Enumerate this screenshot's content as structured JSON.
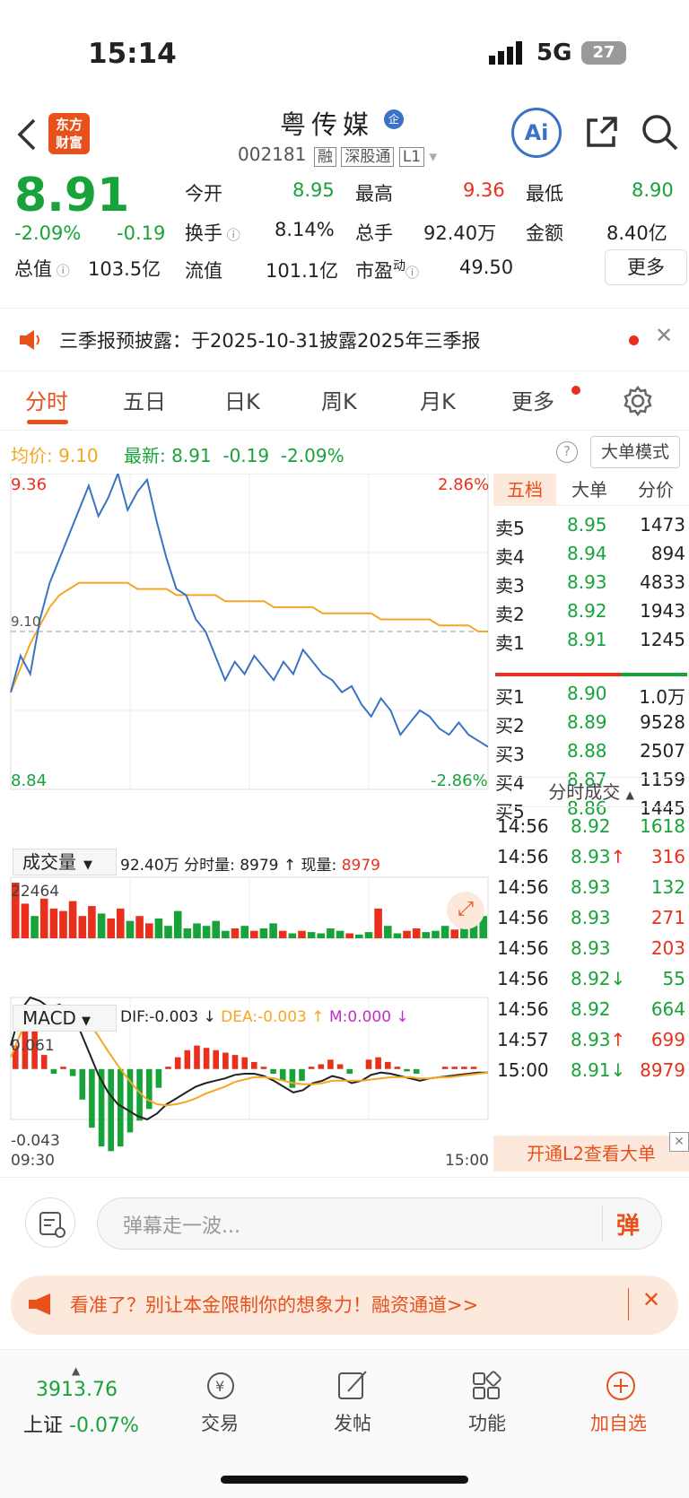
{
  "status": {
    "time": "15:14",
    "network": "5G",
    "battery": "27"
  },
  "nav": {
    "logo_line1": "东方",
    "logo_line2": "财富",
    "title": "粤传媒",
    "badge": "企",
    "code": "002181",
    "tags": [
      "融",
      "深股通",
      "L1"
    ],
    "ai_label": "Ai"
  },
  "quote": {
    "price": "8.91",
    "change_pct": "-2.09%",
    "change": "-0.19",
    "open_label": "今开",
    "open": "8.95",
    "high_label": "最高",
    "high": "9.36",
    "low_label": "最低",
    "low": "8.90",
    "turnover_label": "换手",
    "turnover": "8.14%",
    "volume_label": "总手",
    "volume": "92.40万",
    "amount_label": "金额",
    "amount": "8.40亿",
    "mktcap_label": "总值",
    "mktcap": "103.5亿",
    "float_label": "流值",
    "float": "101.1亿",
    "pe_label": "市盈",
    "pe_sup": "动",
    "pe": "49.50",
    "more": "更多"
  },
  "notice": {
    "text": "三季报预披露：于2025-10-31披露2025年三季报"
  },
  "tabs": [
    "分时",
    "五日",
    "日K",
    "周K",
    "月K",
    "更多"
  ],
  "avg": {
    "avg_label": "均价:",
    "avg": "9.10",
    "latest_label": "最新:",
    "latest": "8.91",
    "chg": "-0.19",
    "pct": "-2.09%",
    "mode": "大单模式"
  },
  "chart_data": {
    "type": "line",
    "price": {
      "ylim": [
        8.84,
        9.36
      ],
      "y_high_label": "9.36",
      "y_low_label": "8.84",
      "pct_high_label": "2.86%",
      "pct_low_label": "-2.86%",
      "ref_label": "9.10",
      "ref": 9.1,
      "x_start": "09:30",
      "x_end": "15:00",
      "series": [
        {
          "name": "price",
          "color": "#3a73c4",
          "values": [
            9.0,
            9.06,
            9.03,
            9.12,
            9.18,
            9.22,
            9.26,
            9.3,
            9.34,
            9.29,
            9.32,
            9.36,
            9.3,
            9.33,
            9.35,
            9.28,
            9.22,
            9.17,
            9.16,
            9.12,
            9.1,
            9.06,
            9.02,
            9.05,
            9.03,
            9.06,
            9.04,
            9.02,
            9.05,
            9.03,
            9.07,
            9.05,
            9.03,
            9.02,
            9.0,
            9.01,
            8.98,
            8.96,
            8.99,
            8.97,
            8.93,
            8.95,
            8.97,
            8.96,
            8.94,
            8.93,
            8.95,
            8.93,
            8.92,
            8.91
          ]
        },
        {
          "name": "avg",
          "color": "#f5a623",
          "values": [
            9.0,
            9.04,
            9.08,
            9.11,
            9.14,
            9.16,
            9.17,
            9.18,
            9.18,
            9.18,
            9.18,
            9.18,
            9.18,
            9.17,
            9.17,
            9.17,
            9.17,
            9.16,
            9.16,
            9.16,
            9.16,
            9.16,
            9.15,
            9.15,
            9.15,
            9.15,
            9.15,
            9.14,
            9.14,
            9.14,
            9.14,
            9.14,
            9.13,
            9.13,
            9.13,
            9.13,
            9.13,
            9.13,
            9.12,
            9.12,
            9.12,
            9.12,
            9.12,
            9.12,
            9.11,
            9.11,
            9.11,
            9.11,
            9.1,
            9.1
          ]
        }
      ]
    },
    "volume": {
      "label": "成交量",
      "total": "92.40万",
      "period_label": "分时量:",
      "period": "8979",
      "now_label": "现量:",
      "now": "8979",
      "ymax_label": "22464",
      "ymax": 22464,
      "values": [
        22464,
        14000,
        9000,
        16000,
        12000,
        11000,
        15000,
        9000,
        13000,
        10000,
        8000,
        12000,
        7000,
        9000,
        6000,
        8000,
        5000,
        11000,
        4000,
        6000,
        5000,
        7000,
        3000,
        4000,
        5000,
        3000,
        4000,
        6000,
        3000,
        2000,
        3000,
        2500,
        2000,
        4000,
        3000,
        2000,
        1500,
        2500,
        12000,
        5000,
        2000,
        3000,
        4000,
        2500,
        3000,
        5000,
        3500,
        4000,
        8000,
        8979
      ]
    },
    "macd": {
      "label": "MACD",
      "dif_label": "DIF:",
      "dif": "-0.003",
      "dea_label": "DEA:",
      "dea": "-0.003",
      "m_label": "M:",
      "m": "0.000",
      "ymax_label": "0.061",
      "ymin_label": "-0.043",
      "ylim": [
        -0.043,
        0.061
      ],
      "dif_values": [
        0.02,
        0.05,
        0.061,
        0.058,
        0.052,
        0.055,
        0.05,
        0.035,
        0.015,
        -0.005,
        -0.02,
        -0.03,
        -0.035,
        -0.04,
        -0.043,
        -0.038,
        -0.03,
        -0.025,
        -0.02,
        -0.015,
        -0.012,
        -0.01,
        -0.008,
        -0.005,
        -0.004,
        -0.004,
        -0.006,
        -0.01,
        -0.015,
        -0.02,
        -0.018,
        -0.012,
        -0.01,
        -0.006,
        -0.008,
        -0.012,
        -0.01,
        -0.005,
        -0.003,
        -0.004,
        -0.006,
        -0.008,
        -0.01,
        -0.008,
        -0.007,
        -0.006,
        -0.005,
        -0.004,
        -0.003,
        -0.003
      ],
      "dea_values": [
        0.01,
        0.03,
        0.045,
        0.052,
        0.054,
        0.054,
        0.053,
        0.048,
        0.04,
        0.028,
        0.015,
        0.003,
        -0.008,
        -0.018,
        -0.026,
        -0.03,
        -0.031,
        -0.03,
        -0.028,
        -0.025,
        -0.021,
        -0.018,
        -0.015,
        -0.011,
        -0.009,
        -0.007,
        -0.007,
        -0.008,
        -0.01,
        -0.012,
        -0.013,
        -0.013,
        -0.012,
        -0.01,
        -0.01,
        -0.01,
        -0.01,
        -0.009,
        -0.008,
        -0.007,
        -0.007,
        -0.007,
        -0.008,
        -0.008,
        -0.007,
        -0.007,
        -0.006,
        -0.005,
        -0.004,
        -0.003
      ]
    }
  },
  "side": {
    "tabs": [
      "五档",
      "大单",
      "分价"
    ],
    "asks": [
      {
        "label": "卖5",
        "price": "8.95",
        "vol": "1473"
      },
      {
        "label": "卖4",
        "price": "8.94",
        "vol": "894"
      },
      {
        "label": "卖3",
        "price": "8.93",
        "vol": "4833"
      },
      {
        "label": "卖2",
        "price": "8.92",
        "vol": "1943"
      },
      {
        "label": "卖1",
        "price": "8.91",
        "vol": "1245"
      }
    ],
    "bids": [
      {
        "label": "买1",
        "price": "8.90",
        "vol": "1.0万"
      },
      {
        "label": "买2",
        "price": "8.89",
        "vol": "9528"
      },
      {
        "label": "买3",
        "price": "8.88",
        "vol": "2507"
      },
      {
        "label": "买4",
        "price": "8.87",
        "vol": "1159"
      },
      {
        "label": "买5",
        "price": "8.86",
        "vol": "1445"
      }
    ],
    "ticks_title": "分时成交",
    "ticks": [
      {
        "time": "14:56",
        "price": "8.92",
        "arrow": "",
        "vol": "1618",
        "vc": "green"
      },
      {
        "time": "14:56",
        "price": "8.93",
        "arrow": "↑",
        "vol": "316",
        "vc": "red"
      },
      {
        "time": "14:56",
        "price": "8.93",
        "arrow": "",
        "vol": "132",
        "vc": "green"
      },
      {
        "time": "14:56",
        "price": "8.93",
        "arrow": "",
        "vol": "271",
        "vc": "red"
      },
      {
        "time": "14:56",
        "price": "8.93",
        "arrow": "",
        "vol": "203",
        "vc": "red"
      },
      {
        "time": "14:56",
        "price": "8.92",
        "arrow": "↓",
        "vol": "55",
        "vc": "green"
      },
      {
        "time": "14:56",
        "price": "8.92",
        "arrow": "",
        "vol": "664",
        "vc": "green"
      },
      {
        "time": "14:57",
        "price": "8.93",
        "arrow": "↑",
        "vol": "699",
        "vc": "red"
      },
      {
        "time": "15:00",
        "price": "8.91",
        "arrow": "↓",
        "vol": "8979",
        "vc": "red"
      }
    ],
    "l2": "开通L2查看大单"
  },
  "bubble": {
    "placeholder": "弹幕走一波...",
    "btn": "弹"
  },
  "ad": {
    "text": "看准了？别让本金限制你的想象力！融资通道>>"
  },
  "bottom": {
    "index_value": "3913.76",
    "index_name": "上证",
    "index_chg": "-0.07%",
    "items": [
      "交易",
      "发帖",
      "功能",
      "加自选"
    ]
  }
}
